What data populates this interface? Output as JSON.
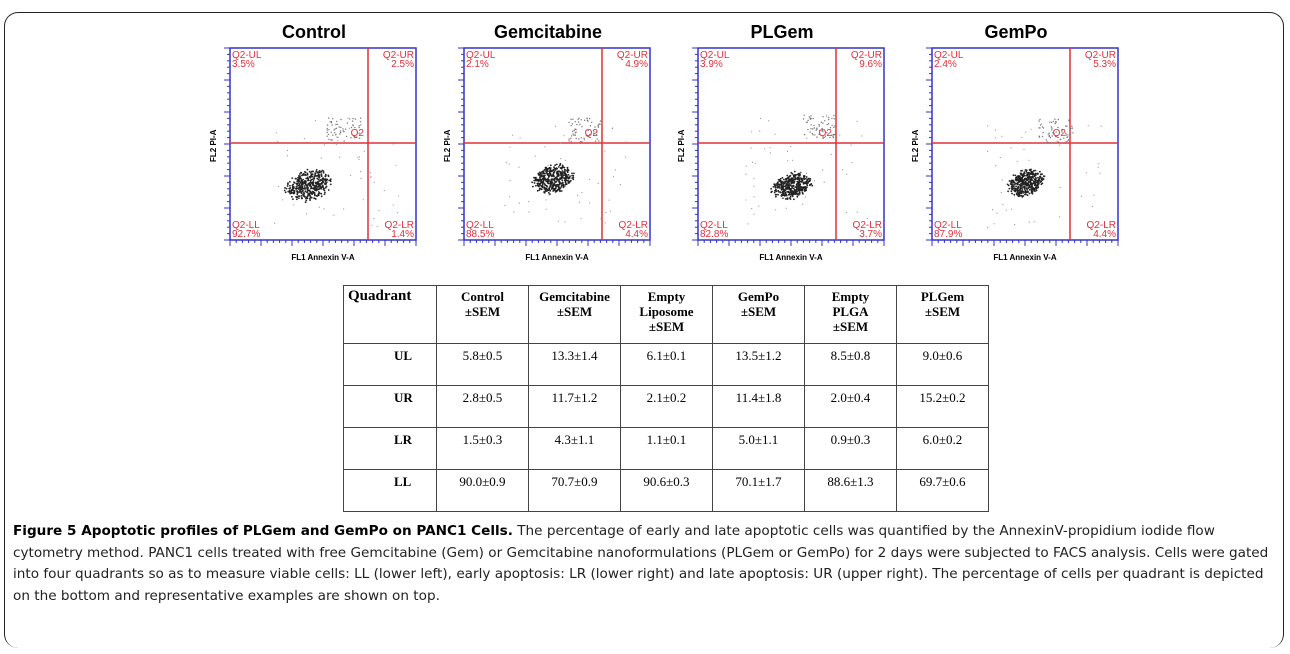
{
  "panels": [
    {
      "title": "Control",
      "ylabel": "FL2 PI-A",
      "xlabel": "FL1 Annexin V-A",
      "q_ul": "Q2-UL",
      "q_ul_pct": "3.5%",
      "q_ur": "Q2-UR",
      "q_ur_pct": "2.5%",
      "q_ll": "Q2-LL",
      "q_ll_pct": "92.7%",
      "q_lr": "Q2-LR",
      "q_lr_pct": "1.4%",
      "center": "Q2"
    },
    {
      "title": "Gemcitabine",
      "ylabel": "FL2 PI-A",
      "xlabel": "FL1 Annexin V-A",
      "q_ul": "Q2-UL",
      "q_ul_pct": "2.1%",
      "q_ur": "Q2-UR",
      "q_ur_pct": "4.9%",
      "q_ll": "Q2-LL",
      "q_ll_pct": "88.5%",
      "q_lr": "Q2-LR",
      "q_lr_pct": "4.4%",
      "center": "Q2"
    },
    {
      "title": "PLGem",
      "ylabel": "FL2 PI-A",
      "xlabel": "FL1 Annexin V-A",
      "q_ul": "Q2-UL",
      "q_ul_pct": "3.9%",
      "q_ur": "Q2-UR",
      "q_ur_pct": "9.6%",
      "q_ll": "Q2-LL",
      "q_ll_pct": "82.8%",
      "q_lr": "Q2-LR",
      "q_lr_pct": "3.7%",
      "center": "Q2"
    },
    {
      "title": "GemPo",
      "ylabel": "FL2 PI-A",
      "xlabel": "FL1 Annexin V-A",
      "q_ul": "Q2-UL",
      "q_ul_pct": "2.4%",
      "q_ur": "Q2-UR",
      "q_ur_pct": "5.3%",
      "q_ll": "Q2-LL",
      "q_ll_pct": "87.9%",
      "q_lr": "Q2-LR",
      "q_lr_pct": "4.4%",
      "center": "Q2"
    }
  ],
  "table": {
    "header_quadrant": "Quadrant",
    "columns": [
      {
        "line1": "Control",
        "line2": "±SEM",
        "line3": ""
      },
      {
        "line1": "Gemcitabine",
        "line2": "±SEM",
        "line3": ""
      },
      {
        "line1": "Empty",
        "line2": "Liposome",
        "line3": "±SEM"
      },
      {
        "line1": "GemPo",
        "line2": "±SEM",
        "line3": ""
      },
      {
        "line1": "Empty",
        "line2": "PLGA",
        "line3": "±SEM"
      },
      {
        "line1": "PLGem",
        "line2": "±SEM",
        "line3": ""
      }
    ],
    "rows": [
      {
        "label": "UL",
        "values": [
          "5.8±0.5",
          "13.3±1.4",
          "6.1±0.1",
          "13.5±1.2",
          "8.5±0.8",
          "9.0±0.6"
        ]
      },
      {
        "label": "UR",
        "values": [
          "2.8±0.5",
          "11.7±1.2",
          "2.1±0.2",
          "11.4±1.8",
          "2.0±0.4",
          "15.2±0.2"
        ]
      },
      {
        "label": "LR",
        "values": [
          "1.5±0.3",
          "4.3±1.1",
          "1.1±0.1",
          "5.0±1.1",
          "0.9±0.3",
          "6.0±0.2"
        ]
      },
      {
        "label": "LL",
        "values": [
          "90.0±0.9",
          "70.7±0.9",
          "90.6±0.3",
          "70.1±1.7",
          "88.6±1.3",
          "69.7±0.6"
        ]
      }
    ]
  },
  "caption": {
    "label": "Figure 5 Apoptotic profiles of PLGem and GemPo on PANC1 Cells.",
    "text": " The percentage of early and late apoptotic cells was quantified by the AnnexinV-propidium iodide flow cytometry method. PANC1 cells treated with free Gemcitabine (Gem) or Gemcitabine nanoformulations (PLGem or GemPo) for 2 days were subjected to FACS analysis. Cells were gated into four quadrants so as to measure viable cells: LL (lower left), early apoptosis: LR (lower right) and late apoptosis: UR (upper right). The percentage of cells per quadrant is depicted on the bottom and representative examples are shown on top."
  },
  "colors": {
    "axis": "#3333cc",
    "gate": "#e0303a",
    "dots": "#222222"
  }
}
